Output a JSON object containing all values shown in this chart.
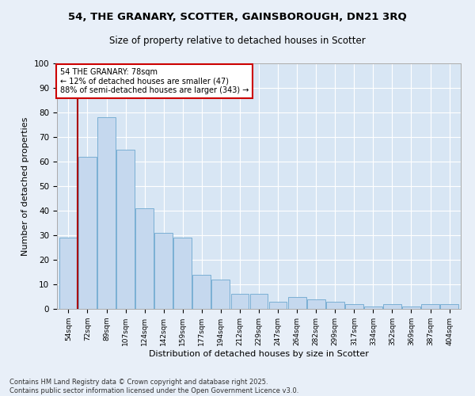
{
  "title1": "54, THE GRANARY, SCOTTER, GAINSBOROUGH, DN21 3RQ",
  "title2": "Size of property relative to detached houses in Scotter",
  "xlabel": "Distribution of detached houses by size in Scotter",
  "ylabel": "Number of detached properties",
  "categories": [
    "54sqm",
    "72sqm",
    "89sqm",
    "107sqm",
    "124sqm",
    "142sqm",
    "159sqm",
    "177sqm",
    "194sqm",
    "212sqm",
    "229sqm",
    "247sqm",
    "264sqm",
    "282sqm",
    "299sqm",
    "317sqm",
    "334sqm",
    "352sqm",
    "369sqm",
    "387sqm",
    "404sqm"
  ],
  "values": [
    29,
    62,
    78,
    65,
    41,
    31,
    29,
    14,
    12,
    6,
    6,
    3,
    5,
    4,
    3,
    2,
    1,
    2,
    1,
    2,
    2
  ],
  "bar_color": "#c5d8ee",
  "bar_edge_color": "#7aafd4",
  "vline_x": 0.5,
  "vline_color": "#aa0000",
  "annotation_text": "54 THE GRANARY: 78sqm\n← 12% of detached houses are smaller (47)\n88% of semi-detached houses are larger (343) →",
  "annotation_box_color": "#ffffff",
  "annotation_box_edgecolor": "#cc0000",
  "background_color": "#e8eff8",
  "plot_bg_color": "#d8e6f4",
  "footer": "Contains HM Land Registry data © Crown copyright and database right 2025.\nContains public sector information licensed under the Open Government Licence v3.0.",
  "ylim": [
    0,
    100
  ],
  "yticks": [
    0,
    10,
    20,
    30,
    40,
    50,
    60,
    70,
    80,
    90,
    100
  ]
}
